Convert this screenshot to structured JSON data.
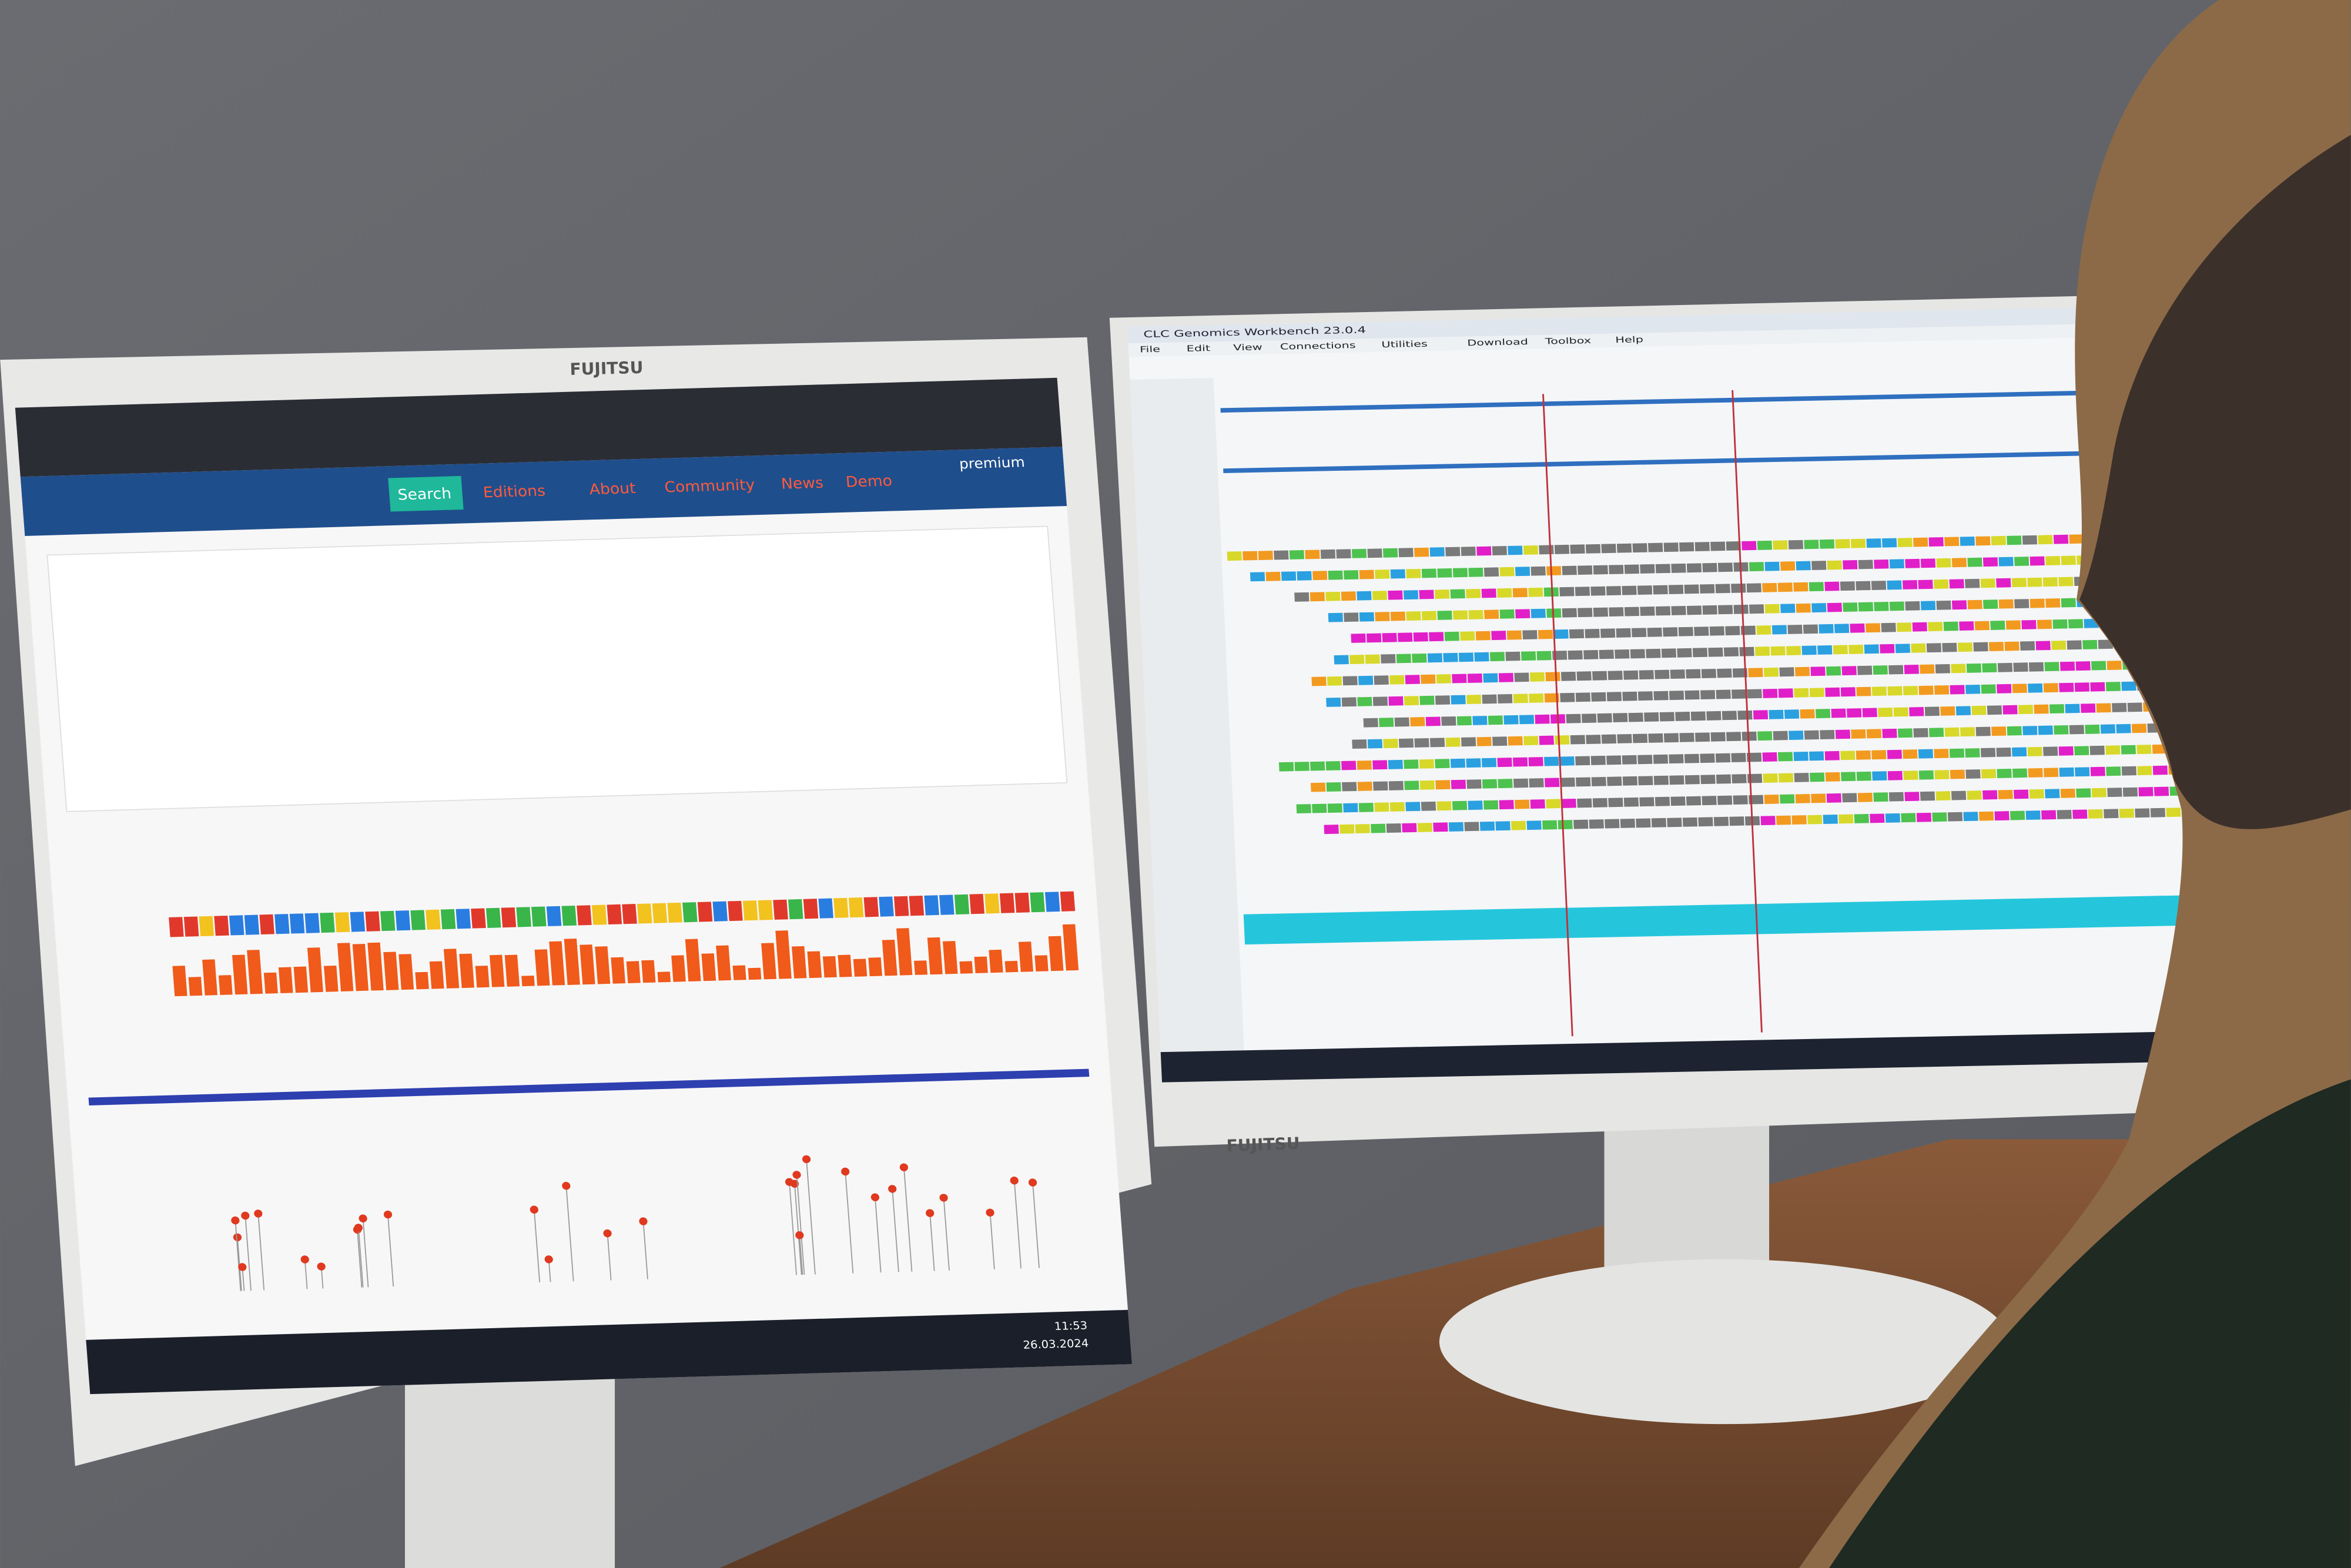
{
  "left_screen": {
    "nav": [
      "Search",
      "Editions",
      "About",
      "Community",
      "News",
      "Demo"
    ],
    "account": "premium",
    "time": "11:53",
    "date": "26.03.2024",
    "brand": "FUJITSU"
  },
  "right_screen": {
    "title": "CLC Genomics Workbench 23.0.4",
    "menu": [
      "File",
      "Edit",
      "View",
      "Connections",
      "Utilities",
      "Download",
      "Toolbox",
      "Help"
    ],
    "brand": "FUJITSU"
  }
}
